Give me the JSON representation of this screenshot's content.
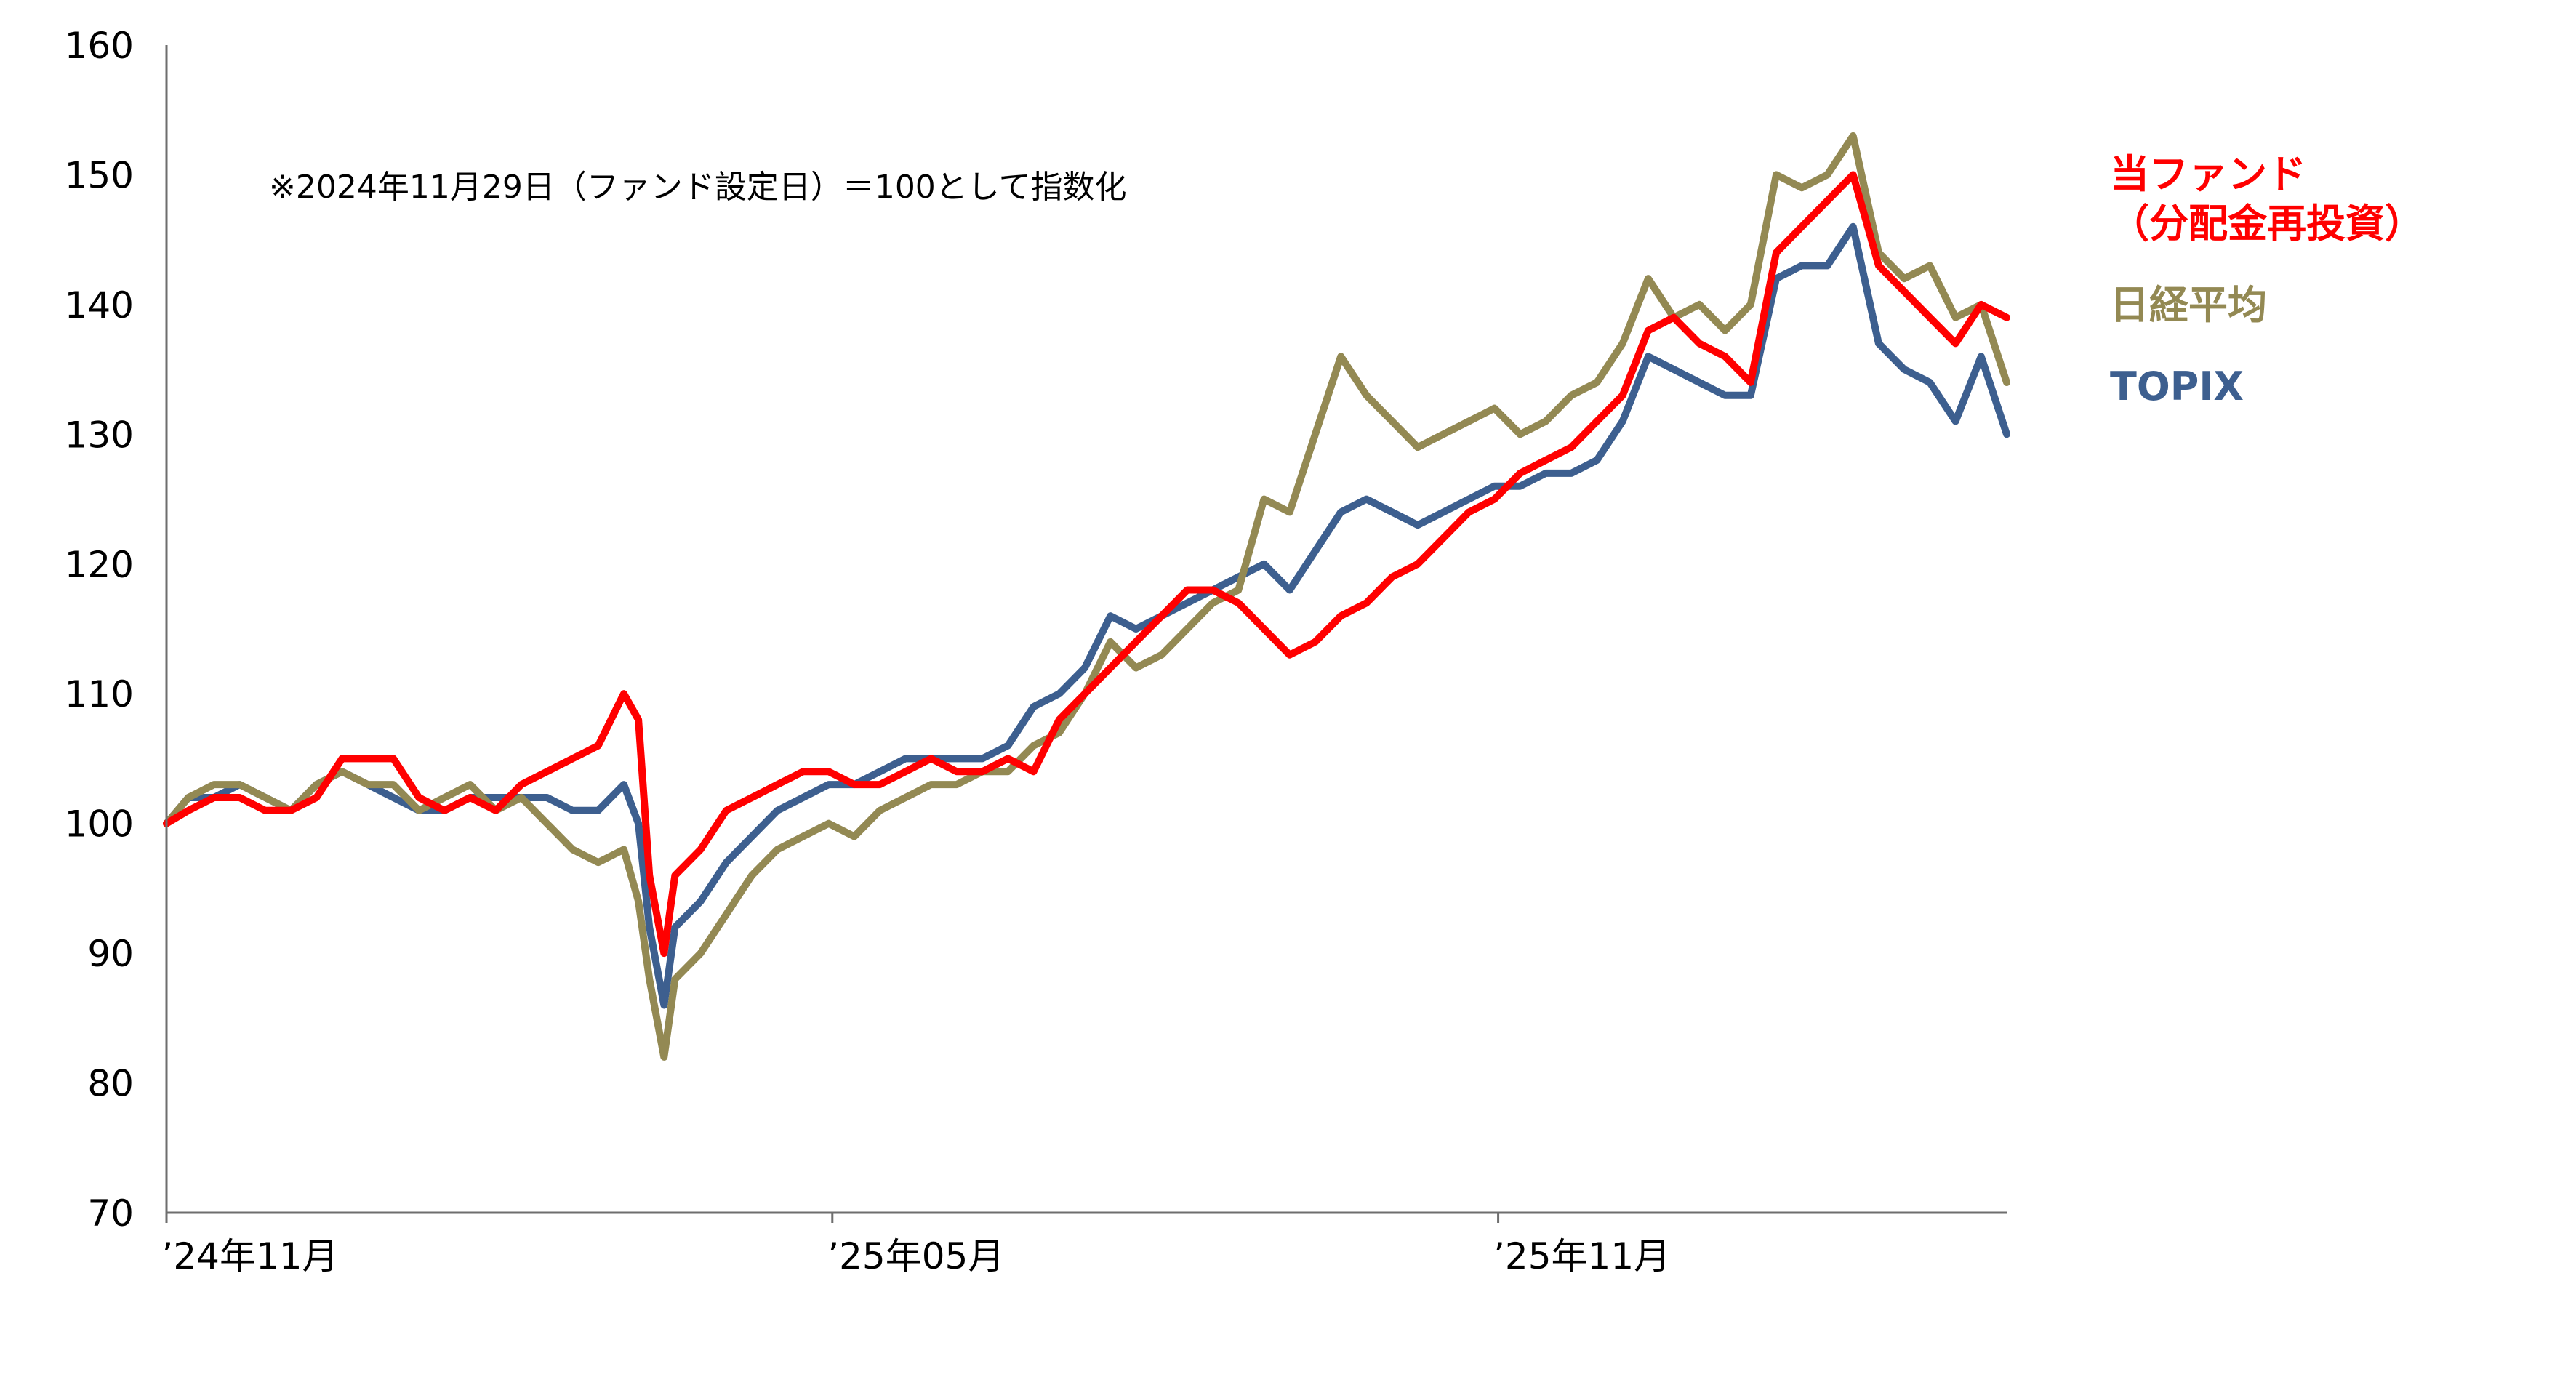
{
  "chart_data": {
    "type": "line",
    "note": "※2024年11月29日（ファンド設定日）＝100として指数化",
    "ylim": [
      70,
      160
    ],
    "yticks": [
      "160",
      "150",
      "140",
      "130",
      "120",
      "110",
      "100",
      "90",
      "80",
      "70"
    ],
    "xticks": [
      {
        "label": "’24年11月",
        "date": "2024-11-29"
      },
      {
        "label": "’25年05月",
        "date": "2025-05-30"
      },
      {
        "label": "’25年11月",
        "date": "2025-11-28"
      }
    ],
    "grid": false,
    "legend_placement": "right",
    "series": [
      {
        "legend_lines": [
          "当ファンド",
          "（分配金再投資）"
        ],
        "color": "#ff0000",
        "points": [
          [
            "2024-11-29",
            100
          ],
          [
            "2024-12-05",
            101
          ],
          [
            "2024-12-12",
            102
          ],
          [
            "2024-12-19",
            102
          ],
          [
            "2024-12-26",
            101
          ],
          [
            "2025-01-02",
            101
          ],
          [
            "2025-01-09",
            102
          ],
          [
            "2025-01-16",
            105
          ],
          [
            "2025-01-23",
            105
          ],
          [
            "2025-01-30",
            105
          ],
          [
            "2025-02-06",
            102
          ],
          [
            "2025-02-13",
            101
          ],
          [
            "2025-02-20",
            102
          ],
          [
            "2025-02-27",
            101
          ],
          [
            "2025-03-06",
            103
          ],
          [
            "2025-03-13",
            104
          ],
          [
            "2025-03-20",
            105
          ],
          [
            "2025-03-27",
            106
          ],
          [
            "2025-04-03",
            110
          ],
          [
            "2025-04-07",
            108
          ],
          [
            "2025-04-10",
            96
          ],
          [
            "2025-04-14",
            90
          ],
          [
            "2025-04-17",
            96
          ],
          [
            "2025-04-24",
            98
          ],
          [
            "2025-05-01",
            101
          ],
          [
            "2025-05-08",
            102
          ],
          [
            "2025-05-15",
            103
          ],
          [
            "2025-05-22",
            104
          ],
          [
            "2025-05-29",
            104
          ],
          [
            "2025-06-05",
            103
          ],
          [
            "2025-06-12",
            103
          ],
          [
            "2025-06-19",
            104
          ],
          [
            "2025-06-26",
            105
          ],
          [
            "2025-07-03",
            104
          ],
          [
            "2025-07-10",
            104
          ],
          [
            "2025-07-17",
            105
          ],
          [
            "2025-07-24",
            104
          ],
          [
            "2025-07-31",
            108
          ],
          [
            "2025-08-07",
            110
          ],
          [
            "2025-08-14",
            112
          ],
          [
            "2025-08-21",
            114
          ],
          [
            "2025-08-28",
            116
          ],
          [
            "2025-09-04",
            118
          ],
          [
            "2025-09-11",
            118
          ],
          [
            "2025-09-18",
            117
          ],
          [
            "2025-09-25",
            115
          ],
          [
            "2025-10-02",
            113
          ],
          [
            "2025-10-09",
            114
          ],
          [
            "2025-10-16",
            116
          ],
          [
            "2025-10-23",
            117
          ],
          [
            "2025-10-30",
            119
          ],
          [
            "2025-11-06",
            120
          ],
          [
            "2025-11-13",
            122
          ],
          [
            "2025-11-20",
            124
          ],
          [
            "2025-11-27",
            125
          ],
          [
            "2025-12-04",
            127
          ],
          [
            "2025-12-11",
            128
          ],
          [
            "2025-12-18",
            129
          ],
          [
            "2025-12-25",
            131
          ],
          [
            "2026-01-01",
            133
          ],
          [
            "2026-01-08",
            138
          ],
          [
            "2026-01-15",
            139
          ],
          [
            "2026-01-22",
            137
          ],
          [
            "2026-01-29",
            136
          ],
          [
            "2026-02-05",
            134
          ],
          [
            "2026-02-12",
            144
          ],
          [
            "2026-02-19",
            146
          ],
          [
            "2026-02-26",
            148
          ],
          [
            "2026-03-05",
            150
          ],
          [
            "2026-03-12",
            143
          ],
          [
            "2026-03-19",
            141
          ],
          [
            "2026-03-26",
            139
          ],
          [
            "2026-04-02",
            137
          ],
          [
            "2026-04-09",
            140
          ],
          [
            "2026-04-16",
            139
          ]
        ]
      },
      {
        "legend_lines": [
          "日経平均"
        ],
        "color": "#938953",
        "points": [
          [
            "2024-11-29",
            100
          ],
          [
            "2024-12-05",
            102
          ],
          [
            "2024-12-12",
            103
          ],
          [
            "2024-12-19",
            103
          ],
          [
            "2024-12-26",
            102
          ],
          [
            "2025-01-02",
            101
          ],
          [
            "2025-01-09",
            103
          ],
          [
            "2025-01-16",
            104
          ],
          [
            "2025-01-23",
            103
          ],
          [
            "2025-01-30",
            103
          ],
          [
            "2025-02-06",
            101
          ],
          [
            "2025-02-13",
            102
          ],
          [
            "2025-02-20",
            103
          ],
          [
            "2025-02-27",
            101
          ],
          [
            "2025-03-06",
            102
          ],
          [
            "2025-03-13",
            100
          ],
          [
            "2025-03-20",
            98
          ],
          [
            "2025-03-27",
            97
          ],
          [
            "2025-04-03",
            98
          ],
          [
            "2025-04-07",
            94
          ],
          [
            "2025-04-10",
            88
          ],
          [
            "2025-04-14",
            82
          ],
          [
            "2025-04-17",
            88
          ],
          [
            "2025-04-24",
            90
          ],
          [
            "2025-05-01",
            93
          ],
          [
            "2025-05-08",
            96
          ],
          [
            "2025-05-15",
            98
          ],
          [
            "2025-05-22",
            99
          ],
          [
            "2025-05-29",
            100
          ],
          [
            "2025-06-05",
            99
          ],
          [
            "2025-06-12",
            101
          ],
          [
            "2025-06-19",
            102
          ],
          [
            "2025-06-26",
            103
          ],
          [
            "2025-07-03",
            103
          ],
          [
            "2025-07-10",
            104
          ],
          [
            "2025-07-17",
            104
          ],
          [
            "2025-07-24",
            106
          ],
          [
            "2025-07-31",
            107
          ],
          [
            "2025-08-07",
            110
          ],
          [
            "2025-08-14",
            114
          ],
          [
            "2025-08-21",
            112
          ],
          [
            "2025-08-28",
            113
          ],
          [
            "2025-09-04",
            115
          ],
          [
            "2025-09-11",
            117
          ],
          [
            "2025-09-18",
            118
          ],
          [
            "2025-09-25",
            125
          ],
          [
            "2025-10-02",
            124
          ],
          [
            "2025-10-09",
            130
          ],
          [
            "2025-10-16",
            136
          ],
          [
            "2025-10-23",
            133
          ],
          [
            "2025-10-30",
            131
          ],
          [
            "2025-11-06",
            129
          ],
          [
            "2025-11-13",
            130
          ],
          [
            "2025-11-20",
            131
          ],
          [
            "2025-11-27",
            132
          ],
          [
            "2025-12-04",
            130
          ],
          [
            "2025-12-11",
            131
          ],
          [
            "2025-12-18",
            133
          ],
          [
            "2025-12-25",
            134
          ],
          [
            "2026-01-01",
            137
          ],
          [
            "2026-01-08",
            142
          ],
          [
            "2026-01-15",
            139
          ],
          [
            "2026-01-22",
            140
          ],
          [
            "2026-01-29",
            138
          ],
          [
            "2026-02-05",
            140
          ],
          [
            "2026-02-12",
            150
          ],
          [
            "2026-02-19",
            149
          ],
          [
            "2026-02-26",
            150
          ],
          [
            "2026-03-05",
            153
          ],
          [
            "2026-03-12",
            144
          ],
          [
            "2026-03-19",
            142
          ],
          [
            "2026-03-26",
            143
          ],
          [
            "2026-04-02",
            139
          ],
          [
            "2026-04-09",
            140
          ],
          [
            "2026-04-16",
            134
          ]
        ]
      },
      {
        "legend_lines": [
          "TOPIX"
        ],
        "color": "#3d5f8f",
        "points": [
          [
            "2024-11-29",
            100
          ],
          [
            "2024-12-05",
            102
          ],
          [
            "2024-12-12",
            102
          ],
          [
            "2024-12-19",
            103
          ],
          [
            "2024-12-26",
            102
          ],
          [
            "2025-01-02",
            101
          ],
          [
            "2025-01-09",
            103
          ],
          [
            "2025-01-16",
            104
          ],
          [
            "2025-01-23",
            103
          ],
          [
            "2025-01-30",
            102
          ],
          [
            "2025-02-06",
            101
          ],
          [
            "2025-02-13",
            101
          ],
          [
            "2025-02-20",
            102
          ],
          [
            "2025-02-27",
            102
          ],
          [
            "2025-03-06",
            102
          ],
          [
            "2025-03-13",
            102
          ],
          [
            "2025-03-20",
            101
          ],
          [
            "2025-03-27",
            101
          ],
          [
            "2025-04-03",
            103
          ],
          [
            "2025-04-07",
            100
          ],
          [
            "2025-04-10",
            92
          ],
          [
            "2025-04-14",
            86
          ],
          [
            "2025-04-17",
            92
          ],
          [
            "2025-04-24",
            94
          ],
          [
            "2025-05-01",
            97
          ],
          [
            "2025-05-08",
            99
          ],
          [
            "2025-05-15",
            101
          ],
          [
            "2025-05-22",
            102
          ],
          [
            "2025-05-29",
            103
          ],
          [
            "2025-06-05",
            103
          ],
          [
            "2025-06-12",
            104
          ],
          [
            "2025-06-19",
            105
          ],
          [
            "2025-06-26",
            105
          ],
          [
            "2025-07-03",
            105
          ],
          [
            "2025-07-10",
            105
          ],
          [
            "2025-07-17",
            106
          ],
          [
            "2025-07-24",
            109
          ],
          [
            "2025-07-31",
            110
          ],
          [
            "2025-08-07",
            112
          ],
          [
            "2025-08-14",
            116
          ],
          [
            "2025-08-21",
            115
          ],
          [
            "2025-08-28",
            116
          ],
          [
            "2025-09-04",
            117
          ],
          [
            "2025-09-11",
            118
          ],
          [
            "2025-09-18",
            119
          ],
          [
            "2025-09-25",
            120
          ],
          [
            "2025-10-02",
            118
          ],
          [
            "2025-10-09",
            121
          ],
          [
            "2025-10-16",
            124
          ],
          [
            "2025-10-23",
            125
          ],
          [
            "2025-10-30",
            124
          ],
          [
            "2025-11-06",
            123
          ],
          [
            "2025-11-13",
            124
          ],
          [
            "2025-11-20",
            125
          ],
          [
            "2025-11-27",
            126
          ],
          [
            "2025-12-04",
            126
          ],
          [
            "2025-12-11",
            127
          ],
          [
            "2025-12-18",
            127
          ],
          [
            "2025-12-25",
            128
          ],
          [
            "2026-01-01",
            131
          ],
          [
            "2026-01-08",
            136
          ],
          [
            "2026-01-15",
            135
          ],
          [
            "2026-01-22",
            134
          ],
          [
            "2026-01-29",
            133
          ],
          [
            "2026-02-05",
            133
          ],
          [
            "2026-02-12",
            142
          ],
          [
            "2026-02-19",
            143
          ],
          [
            "2026-02-26",
            143
          ],
          [
            "2026-03-05",
            146
          ],
          [
            "2026-03-12",
            137
          ],
          [
            "2026-03-19",
            135
          ],
          [
            "2026-03-26",
            134
          ],
          [
            "2026-04-02",
            131
          ],
          [
            "2026-04-09",
            136
          ],
          [
            "2026-04-16",
            130
          ]
        ]
      }
    ]
  }
}
